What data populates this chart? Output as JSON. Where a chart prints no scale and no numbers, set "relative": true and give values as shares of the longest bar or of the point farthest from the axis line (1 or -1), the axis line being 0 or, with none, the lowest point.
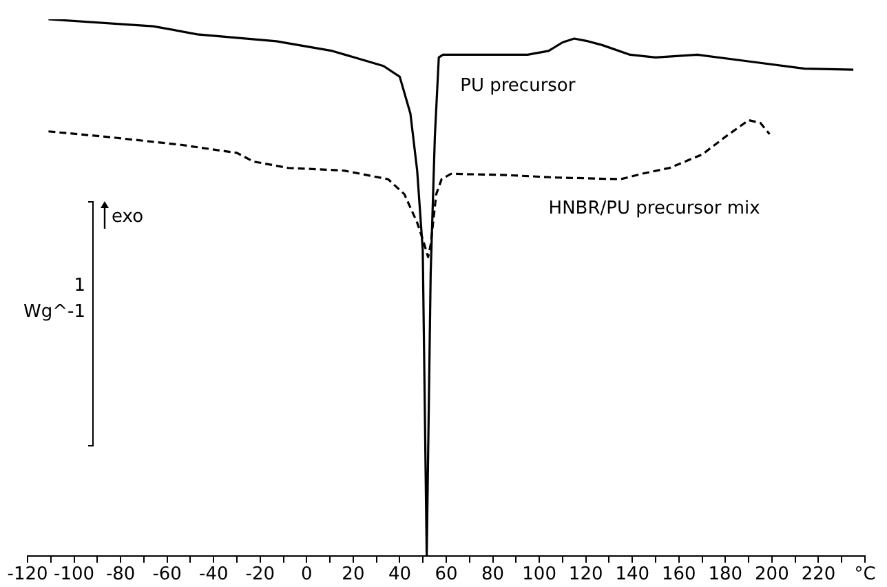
{
  "chart_data": {
    "type": "line",
    "relative": true,
    "legend": false,
    "grid": false,
    "marker": "none",
    "xlim": [
      -120,
      240
    ],
    "xticks": [
      -120,
      {
        "value": -110,
        "label": null
      },
      -100,
      {
        "value": -90,
        "label": null
      },
      -80,
      {
        "value": -70,
        "label": null
      },
      -60,
      {
        "value": -50,
        "label": null
      },
      -40,
      {
        "value": -30,
        "label": null
      },
      -20,
      {
        "value": -10,
        "label": null
      },
      0,
      {
        "value": 10,
        "label": null
      },
      20,
      {
        "value": 30,
        "label": null
      },
      40,
      {
        "value": 50,
        "label": null
      },
      60,
      {
        "value": 70,
        "label": null
      },
      80,
      {
        "value": 90,
        "label": null
      },
      100,
      {
        "value": 110,
        "label": null
      },
      120,
      {
        "value": 130,
        "label": null
      },
      140,
      {
        "value": 150,
        "label": null
      },
      160,
      {
        "value": 170,
        "label": null
      },
      180,
      {
        "value": 190,
        "label": null
      },
      200,
      {
        "value": 210,
        "label": null
      },
      220,
      {
        "value": 230,
        "label": null
      },
      {
        "value": 240,
        "label": "°C"
      }
    ],
    "series": [
      {
        "name": "PU precursor",
        "color": "#000000",
        "line_style": "solid",
        "x": [
          -111,
          -66,
          -47,
          -13,
          11,
          33,
          40,
          44.6,
          47.5,
          49.9,
          51.6,
          53.3,
          55.1,
          56.8,
          58.6,
          75,
          95,
          104,
          110,
          115,
          121,
          127,
          139,
          150,
          168,
          191,
          214,
          235
        ],
        "values": [
          1.0,
          0.987,
          0.972,
          0.959,
          0.941,
          0.913,
          0.893,
          0.824,
          0.718,
          0.57,
          0.0,
          0.527,
          0.781,
          0.929,
          0.934,
          0.934,
          0.934,
          0.941,
          0.957,
          0.964,
          0.959,
          0.952,
          0.934,
          0.929,
          0.934,
          0.921,
          0.908,
          0.906
        ]
      },
      {
        "name": "HNBR/PU precursor mix",
        "color": "#000000",
        "line_style": "dashed",
        "x": [
          -111,
          -86,
          -54,
          -30,
          -23,
          -8,
          16,
          35,
          42,
          47.5,
          49.9,
          52.2,
          53.3,
          55.7,
          58,
          62,
          84,
          108,
          135,
          144,
          156,
          170,
          180,
          190,
          195,
          199
        ],
        "values": [
          0.791,
          0.781,
          0.766,
          0.751,
          0.735,
          0.723,
          0.718,
          0.702,
          0.674,
          0.621,
          0.59,
          0.557,
          0.58,
          0.674,
          0.702,
          0.712,
          0.71,
          0.705,
          0.702,
          0.712,
          0.723,
          0.748,
          0.781,
          0.812,
          0.807,
          0.786
        ]
      }
    ],
    "annotations": [
      "exo",
      "1",
      "Wg^-1"
    ]
  }
}
